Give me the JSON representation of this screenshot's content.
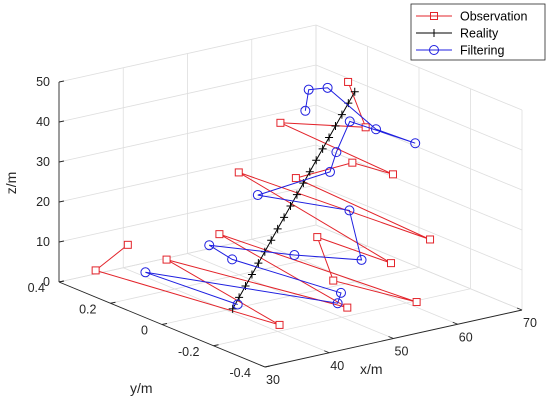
{
  "chart_data": {
    "type": "line3d",
    "xlabel": "x/m",
    "ylabel": "y/m",
    "zlabel": "z/m",
    "xlim": [
      30,
      70
    ],
    "ylim": [
      -0.4,
      0.4
    ],
    "zlim": [
      0,
      50
    ],
    "xticks": [
      "30",
      "40",
      "50",
      "60",
      "70"
    ],
    "yticks": [
      "-0.4",
      "-0.2",
      "0",
      "0.2",
      "0.4"
    ],
    "zticks": [
      "0",
      "10",
      "20",
      "30",
      "40",
      "50"
    ],
    "grid": true,
    "legend_position": "top-right",
    "series": [
      {
        "name": "Observation",
        "color": "#e3242b",
        "marker": "square",
        "points": [
          {
            "x": 34.9,
            "y": 0.255,
            "z": 11.4
          },
          {
            "x": 34.1,
            "y": 0.36,
            "z": 2.5
          },
          {
            "x": 41.6,
            "y": -0.167,
            "z": 0.2
          },
          {
            "x": 35.2,
            "y": 0.112,
            "z": 11.4
          },
          {
            "x": 47.9,
            "y": -0.273,
            "z": 5.1
          },
          {
            "x": 41.1,
            "y": 0.054,
            "z": 17.2
          },
          {
            "x": 55.2,
            "y": -0.36,
            "z": 6.2
          },
          {
            "x": 48.4,
            "y": -0.206,
            "z": 9.9
          },
          {
            "x": 49.6,
            "y": -0.114,
            "z": 17.9
          },
          {
            "x": 54.5,
            "y": -0.278,
            "z": 14.0
          },
          {
            "x": 47.8,
            "y": 0.146,
            "z": 27.8
          },
          {
            "x": 61.9,
            "y": -0.245,
            "z": 16.4
          },
          {
            "x": 52.0,
            "y": 0.029,
            "z": 28.0
          },
          {
            "x": 55.9,
            "y": -0.093,
            "z": 33.7
          },
          {
            "x": 59.9,
            "y": -0.151,
            "z": 30.9
          },
          {
            "x": 53.0,
            "y": 0.114,
            "z": 39.2
          },
          {
            "x": 62.1,
            "y": 0.01,
            "z": 37.6
          },
          {
            "x": 58.0,
            "y": -0.024,
            "z": 51.3
          }
        ]
      },
      {
        "name": "Reality",
        "color": "#000000",
        "marker": "plus",
        "points": [
          {
            "x": 41.0,
            "y": 0.0,
            "z": 0.0
          },
          {
            "x": 42.0,
            "y": 0.0,
            "z": 2.5
          },
          {
            "x": 43.0,
            "y": 0.0,
            "z": 5.0
          },
          {
            "x": 44.0,
            "y": 0.0,
            "z": 7.5
          },
          {
            "x": 45.0,
            "y": 0.0,
            "z": 10.0
          },
          {
            "x": 46.0,
            "y": 0.0,
            "z": 12.5
          },
          {
            "x": 47.0,
            "y": 0.0,
            "z": 15.0
          },
          {
            "x": 48.0,
            "y": 0.0,
            "z": 17.5
          },
          {
            "x": 49.0,
            "y": 0.0,
            "z": 20.0
          },
          {
            "x": 50.0,
            "y": 0.0,
            "z": 22.5
          },
          {
            "x": 51.0,
            "y": 0.0,
            "z": 25.0
          },
          {
            "x": 52.0,
            "y": 0.0,
            "z": 27.5
          },
          {
            "x": 53.0,
            "y": 0.0,
            "z": 30.0
          },
          {
            "x": 54.0,
            "y": 0.0,
            "z": 32.5
          },
          {
            "x": 55.0,
            "y": 0.0,
            "z": 35.0
          },
          {
            "x": 56.0,
            "y": 0.0,
            "z": 37.5
          },
          {
            "x": 57.0,
            "y": 0.0,
            "z": 40.0
          },
          {
            "x": 58.0,
            "y": 0.0,
            "z": 42.5
          },
          {
            "x": 59.0,
            "y": 0.0,
            "z": 45.0
          },
          {
            "x": 60.0,
            "y": 0.0,
            "z": 47.5
          }
        ]
      },
      {
        "name": "Filtering",
        "color": "#1f1fe0",
        "marker": "circle",
        "points": [
          {
            "x": 41.5,
            "y": -0.007,
            "z": 1.1
          },
          {
            "x": 37.4,
            "y": 0.249,
            "z": 3.8
          },
          {
            "x": 47.6,
            "y": -0.243,
            "z": 5.5
          },
          {
            "x": 49.6,
            "y": -0.206,
            "z": 6.4
          },
          {
            "x": 41.6,
            "y": 0.017,
            "z": 11.7
          },
          {
            "x": 40.6,
            "y": 0.081,
            "z": 13.9
          },
          {
            "x": 47.0,
            "y": -0.09,
            "z": 13.7
          },
          {
            "x": 52.6,
            "y": -0.211,
            "z": 13.7
          },
          {
            "x": 53.8,
            "y": -0.134,
            "z": 23.6
          },
          {
            "x": 48.2,
            "y": 0.082,
            "z": 23.7
          },
          {
            "x": 54.7,
            "y": -0.036,
            "z": 30.3
          },
          {
            "x": 55.3,
            "y": -0.046,
            "z": 35.3
          },
          {
            "x": 58.1,
            "y": -0.028,
            "z": 41.5
          },
          {
            "x": 63.4,
            "y": -0.15,
            "z": 37.4
          },
          {
            "x": 60.9,
            "y": -0.06,
            "z": 39.4
          },
          {
            "x": 59.1,
            "y": 0.083,
            "z": 46.6
          },
          {
            "x": 58.4,
            "y": 0.139,
            "z": 44.9
          },
          {
            "x": 56.8,
            "y": 0.112,
            "z": 40.9
          }
        ]
      }
    ]
  }
}
